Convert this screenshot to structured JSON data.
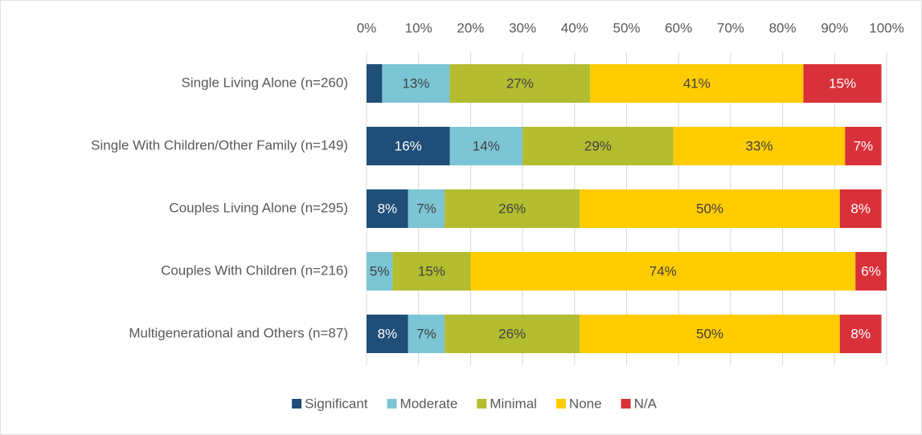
{
  "chart_data": {
    "type": "stacked-bar-horizontal",
    "categories": [
      "Single Living Alone (n=260)",
      "Single With Children/Other Family (n=149)",
      "Couples Living Alone (n=295)",
      "Couples With Children (n=216)",
      "Multigenerational and Others (n=87)"
    ],
    "series": [
      {
        "name": "Significant",
        "color": "#1f4e79",
        "values": [
          3,
          16,
          8,
          0,
          8
        ],
        "value_labels": [
          null,
          "16%",
          "8%",
          null,
          "8%"
        ]
      },
      {
        "name": "Moderate",
        "color": "#7cc5d5",
        "values": [
          13,
          14,
          7,
          5,
          7
        ],
        "value_labels": [
          "13%",
          "14%",
          "7%",
          "5%",
          "7%"
        ]
      },
      {
        "name": "Minimal",
        "color": "#b4bc2f",
        "values": [
          27,
          29,
          26,
          15,
          26
        ],
        "value_labels": [
          "27%",
          "29%",
          "26%",
          "15%",
          "26%"
        ]
      },
      {
        "name": "None",
        "color": "#ffcc00",
        "values": [
          41,
          33,
          50,
          74,
          50
        ],
        "value_labels": [
          "41%",
          "33%",
          "50%",
          "74%",
          "50%"
        ]
      },
      {
        "name": "N/A",
        "color": "#d9313a",
        "values": [
          15,
          7,
          8,
          6,
          8
        ],
        "value_labels": [
          "15%",
          "7%",
          "8%",
          "6%",
          "8%"
        ]
      }
    ],
    "xlim": [
      0,
      100
    ],
    "xticks": [
      {
        "value": 0,
        "label": "0%"
      },
      {
        "value": 10,
        "label": "10%"
      },
      {
        "value": 20,
        "label": "20%"
      },
      {
        "value": 30,
        "label": "30%"
      },
      {
        "value": 40,
        "label": "40%"
      },
      {
        "value": 50,
        "label": "50%"
      },
      {
        "value": 60,
        "label": "60%"
      },
      {
        "value": 70,
        "label": "70%"
      },
      {
        "value": 80,
        "label": "80%"
      },
      {
        "value": 90,
        "label": "90%"
      },
      {
        "value": 100,
        "label": "100%"
      }
    ],
    "grid": true,
    "legend": "bottom"
  }
}
